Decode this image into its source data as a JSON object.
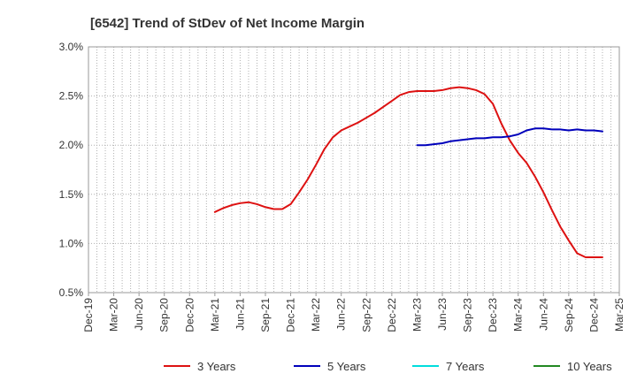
{
  "chart_data": {
    "type": "line",
    "title": "[6542]  Trend of StDev of Net Income Margin",
    "xlabel": "",
    "ylabel": "",
    "x_ticks": [
      "Dec-19",
      "Mar-20",
      "Jun-20",
      "Sep-20",
      "Dec-20",
      "Mar-21",
      "Jun-21",
      "Sep-21",
      "Dec-21",
      "Mar-22",
      "Jun-22",
      "Sep-22",
      "Dec-22",
      "Mar-23",
      "Jun-23",
      "Sep-23",
      "Dec-23",
      "Mar-24",
      "Jun-24",
      "Sep-24",
      "Dec-24",
      "Mar-25"
    ],
    "y_ticks": [
      "0.5%",
      "1.0%",
      "1.5%",
      "2.0%",
      "2.5%",
      "3.0%"
    ],
    "ylim": [
      0.5,
      3.0
    ],
    "grid": true,
    "legend_position": "bottom",
    "series": [
      {
        "name": "3 Years",
        "color": "#dd1111",
        "points": [
          [
            "Mar-21",
            1.32
          ],
          [
            "Apr-21",
            1.36
          ],
          [
            "May-21",
            1.39
          ],
          [
            "Jun-21",
            1.41
          ],
          [
            "Jul-21",
            1.42
          ],
          [
            "Aug-21",
            1.4
          ],
          [
            "Sep-21",
            1.37
          ],
          [
            "Oct-21",
            1.35
          ],
          [
            "Nov-21",
            1.35
          ],
          [
            "Dec-21",
            1.4
          ],
          [
            "Jan-22",
            1.52
          ],
          [
            "Feb-22",
            1.65
          ],
          [
            "Mar-22",
            1.8
          ],
          [
            "Apr-22",
            1.96
          ],
          [
            "May-22",
            2.08
          ],
          [
            "Jun-22",
            2.15
          ],
          [
            "Jul-22",
            2.19
          ],
          [
            "Aug-22",
            2.23
          ],
          [
            "Sep-22",
            2.28
          ],
          [
            "Oct-22",
            2.33
          ],
          [
            "Nov-22",
            2.39
          ],
          [
            "Dec-22",
            2.45
          ],
          [
            "Jan-23",
            2.51
          ],
          [
            "Feb-23",
            2.54
          ],
          [
            "Mar-23",
            2.55
          ],
          [
            "Apr-23",
            2.55
          ],
          [
            "May-23",
            2.55
          ],
          [
            "Jun-23",
            2.56
          ],
          [
            "Jul-23",
            2.58
          ],
          [
            "Aug-23",
            2.59
          ],
          [
            "Sep-23",
            2.58
          ],
          [
            "Oct-23",
            2.56
          ],
          [
            "Nov-23",
            2.52
          ],
          [
            "Dec-23",
            2.42
          ],
          [
            "Jan-24",
            2.22
          ],
          [
            "Feb-24",
            2.05
          ],
          [
            "Mar-24",
            1.92
          ],
          [
            "Apr-24",
            1.82
          ],
          [
            "May-24",
            1.68
          ],
          [
            "Jun-24",
            1.52
          ],
          [
            "Jul-24",
            1.34
          ],
          [
            "Aug-24",
            1.17
          ],
          [
            "Sep-24",
            1.03
          ],
          [
            "Oct-24",
            0.9
          ],
          [
            "Nov-24",
            0.86
          ],
          [
            "Dec-24",
            0.86
          ],
          [
            "Jan-25",
            0.86
          ]
        ]
      },
      {
        "name": "5 Years",
        "color": "#0000bb",
        "points": [
          [
            "Mar-23",
            2.0
          ],
          [
            "Apr-23",
            2.0
          ],
          [
            "May-23",
            2.01
          ],
          [
            "Jun-23",
            2.02
          ],
          [
            "Jul-23",
            2.04
          ],
          [
            "Aug-23",
            2.05
          ],
          [
            "Sep-23",
            2.06
          ],
          [
            "Oct-23",
            2.07
          ],
          [
            "Nov-23",
            2.07
          ],
          [
            "Dec-23",
            2.08
          ],
          [
            "Jan-24",
            2.08
          ],
          [
            "Feb-24",
            2.09
          ],
          [
            "Mar-24",
            2.11
          ],
          [
            "Apr-24",
            2.15
          ],
          [
            "May-24",
            2.17
          ],
          [
            "Jun-24",
            2.17
          ],
          [
            "Jul-24",
            2.16
          ],
          [
            "Aug-24",
            2.16
          ],
          [
            "Sep-24",
            2.15
          ],
          [
            "Oct-24",
            2.16
          ],
          [
            "Nov-24",
            2.15
          ],
          [
            "Dec-24",
            2.15
          ],
          [
            "Jan-25",
            2.14
          ]
        ]
      },
      {
        "name": "7 Years",
        "color": "#00dddd",
        "points": []
      },
      {
        "name": "10 Years",
        "color": "#228822",
        "points": []
      }
    ]
  }
}
